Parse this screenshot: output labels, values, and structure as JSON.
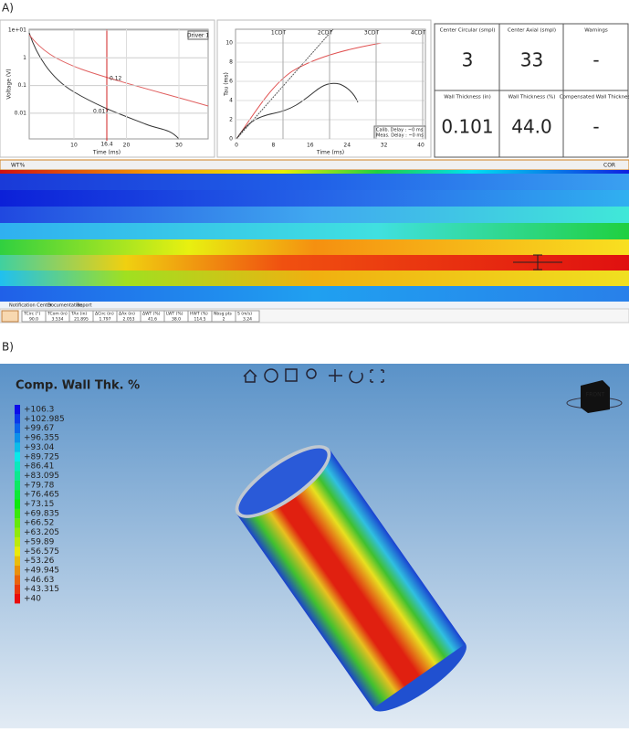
{
  "panel_labels": [
    "A)",
    "B)"
  ],
  "voltage_plot": {
    "y_label": "Voltage (V)",
    "x_label": "Time (ms)",
    "yticks": [
      "1e+01",
      "1",
      "0.1",
      "0.01"
    ],
    "xticks": [
      "10",
      "20",
      "30"
    ],
    "button": "Driver 1",
    "cursor": "16.4",
    "annotations": [
      "0.12",
      "0.017"
    ]
  },
  "tau_plot": {
    "y_label": "Tau (ms)",
    "x_label": "Time (ms)",
    "yticks": [
      "0",
      "2",
      "4",
      "6",
      "8",
      "10"
    ],
    "xticks": [
      "0",
      "8",
      "16",
      "24",
      "32",
      "40"
    ],
    "cdt": [
      "1CDT",
      "2CDT",
      "3CDT",
      "4CDT"
    ],
    "notes": [
      "Calib. Delay : ~0 ms",
      "Meas. Delay : ~0 ms"
    ]
  },
  "summary": [
    {
      "label": "Center Circular (smpl)",
      "value": "3"
    },
    {
      "label": "Center Axial (smpl)",
      "value": "33"
    },
    {
      "label": "Warnings",
      "value": "-"
    },
    {
      "label": "Wall Thickness (in)",
      "value": "0.101"
    },
    {
      "label": "Wall Thickness (%)",
      "value": "44.0"
    },
    {
      "label": "Compensated Wall Thickness",
      "value": "-"
    }
  ],
  "heatmap": {
    "tabs": [
      "WT%",
      "COR"
    ]
  },
  "footer": {
    "links": [
      "Notification Center",
      "Documentation",
      "Report"
    ],
    "table": {
      "headers": [
        "TCirc (°)",
        "TCom (in)",
        "TAx (in)",
        "ΔCirc (in)",
        "ΔAx (in)",
        "ΔWT (%)",
        "LWT (%)",
        "HWT (%)",
        "Nbsg pts",
        "S (m/s)"
      ],
      "values": [
        "90.0",
        "3.534",
        "21.895",
        "1.797",
        "2.053",
        "41.6",
        "38.0",
        "114.5",
        "2",
        "3.24"
      ]
    }
  },
  "view3d": {
    "title": "Comp. Wall Thk. %",
    "cube": "FRONT",
    "legend": [
      "+106.3",
      "+102.985",
      "+99.67",
      "+96.355",
      "+93.04",
      "+89.725",
      "+86.41",
      "+83.095",
      "+79.78",
      "+76.465",
      "+73.15",
      "+69.835",
      "+66.52",
      "+63.205",
      "+59.89",
      "+56.575",
      "+53.26",
      "+49.945",
      "+46.63",
      "+43.315",
      "+40"
    ]
  }
}
